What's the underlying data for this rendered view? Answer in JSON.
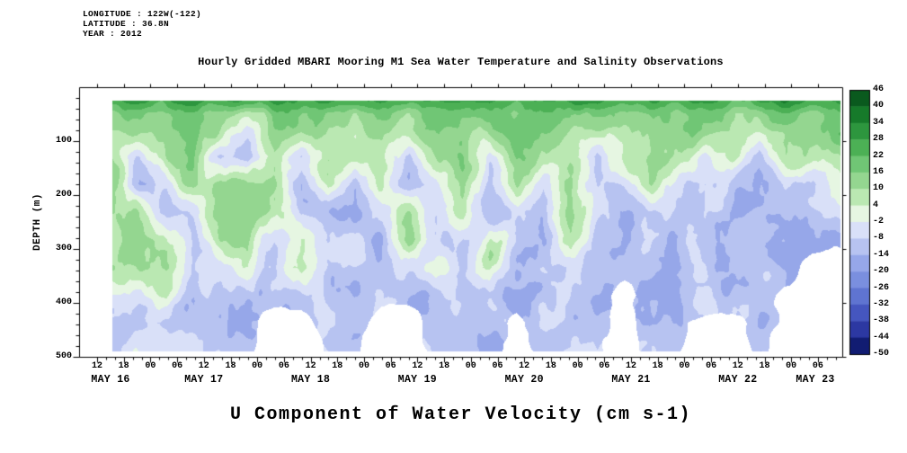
{
  "meta": {
    "longitude": "LONGITUDE : 122W(-122)",
    "latitude": "LATITUDE : 36.8N",
    "year": "YEAR : 2012"
  },
  "chart": {
    "title": "Hourly Gridded MBARI Mooring M1 Sea Water Temperature and Salinity Observations",
    "ylabel": "DEPTH (m)",
    "caption": "U Component of Water Velocity (cm s-1)"
  },
  "chart_data": {
    "type": "heatmap",
    "title": "Hourly Gridded MBARI Mooring M1 Sea Water Temperature and Salinity Observations",
    "ylabel": "DEPTH (m)",
    "units": "cm s-1",
    "y_range_m": [
      0,
      500
    ],
    "y_ticks": [
      "100",
      "200",
      "300",
      "400",
      "500"
    ],
    "x_ticks": [
      "12",
      "18",
      "00",
      "06",
      "12",
      "18",
      "00",
      "06",
      "12",
      "18",
      "00",
      "06",
      "12",
      "18",
      "00",
      "06",
      "12",
      "18",
      "00",
      "06",
      "12",
      "18",
      "00",
      "06",
      "12",
      "18",
      "00",
      "06"
    ],
    "x_day_labels": [
      "MAY 16",
      "MAY 17",
      "MAY 18",
      "MAY 19",
      "MAY 20",
      "MAY 21",
      "MAY 22",
      "MAY 23"
    ],
    "colorbar": {
      "unit": "cm s-1",
      "ticks": [
        46,
        40,
        34,
        28,
        22,
        16,
        10,
        4,
        -2,
        -8,
        -14,
        -20,
        -26,
        -32,
        -38,
        -44,
        -50
      ],
      "colors": [
        "#0a5a1e",
        "#167a2a",
        "#2d963e",
        "#4cb055",
        "#70c675",
        "#94d690",
        "#bae8b2",
        "#e6f6e2",
        "#d9e0f8",
        "#b7c3f1",
        "#96a7e9",
        "#7a8fdf",
        "#5f74d1",
        "#4556bf",
        "#2c38a2",
        "#111c72"
      ]
    },
    "grid": {
      "time_step_hours": 6,
      "depth_step_m": 50,
      "depth_start_m": 25,
      "columns": [
        [
          16,
          12,
          8,
          12,
          14,
          10,
          6,
          -4,
          -8,
          -6
        ],
        [
          18,
          14,
          -6,
          -10,
          8,
          12,
          8,
          -6,
          -10,
          -8
        ],
        [
          20,
          16,
          10,
          -8,
          -12,
          6,
          10,
          4,
          -8,
          -10
        ],
        [
          22,
          18,
          14,
          10,
          -6,
          -10,
          -8,
          -12,
          -10,
          -8
        ],
        [
          16,
          10,
          -8,
          12,
          16,
          10,
          -8,
          -12,
          -10,
          -8
        ],
        [
          18,
          -6,
          -12,
          14,
          18,
          12,
          6,
          -10,
          -14,
          -10
        ],
        [
          20,
          14,
          10,
          16,
          12,
          -8,
          -10,
          -12,
          null,
          null
        ],
        [
          16,
          12,
          -10,
          -14,
          -8,
          6,
          10,
          -8,
          null,
          null
        ],
        [
          22,
          16,
          12,
          8,
          -10,
          -12,
          -8,
          -10,
          -12,
          -10
        ],
        [
          18,
          12,
          8,
          -12,
          -16,
          -10,
          -8,
          -10,
          -12,
          -8
        ],
        [
          20,
          16,
          10,
          6,
          -8,
          -12,
          -10,
          -8,
          null,
          null
        ],
        [
          16,
          10,
          -8,
          -12,
          8,
          12,
          -10,
          -14,
          null,
          null
        ],
        [
          22,
          18,
          12,
          -6,
          -10,
          -8,
          6,
          -10,
          -12,
          -10
        ],
        [
          18,
          14,
          16,
          12,
          8,
          -8,
          -12,
          -10,
          -12,
          -8
        ],
        [
          20,
          12,
          -8,
          -12,
          -10,
          6,
          10,
          -8,
          -10,
          -12
        ],
        [
          16,
          18,
          14,
          10,
          -6,
          -10,
          -12,
          -14,
          null,
          null
        ],
        [
          22,
          16,
          10,
          -8,
          -12,
          -10,
          -8,
          -12,
          -10,
          -8
        ],
        [
          18,
          12,
          8,
          12,
          16,
          10,
          -8,
          -10,
          -12,
          -10
        ],
        [
          20,
          14,
          -10,
          -14,
          -12,
          -8,
          -10,
          -12,
          -10,
          -8
        ],
        [
          16,
          10,
          6,
          -8,
          -12,
          -16,
          -12,
          null,
          null,
          null
        ],
        [
          22,
          18,
          12,
          8,
          -6,
          -10,
          -8,
          -12,
          -10,
          -8
        ],
        [
          18,
          14,
          10,
          -8,
          -12,
          -10,
          -12,
          -14,
          -12,
          -10
        ],
        [
          20,
          16,
          -6,
          -10,
          -8,
          -12,
          -10,
          -8,
          null,
          null
        ],
        [
          16,
          12,
          8,
          -12,
          -16,
          -12,
          -10,
          -12,
          null,
          null
        ],
        [
          18,
          10,
          -8,
          -12,
          -10,
          -8,
          -12,
          -10,
          -12,
          -14
        ],
        [
          22,
          16,
          12,
          -6,
          -10,
          -12,
          -14,
          null,
          null,
          null
        ],
        [
          20,
          14,
          8,
          -10,
          -14,
          -16,
          null,
          null,
          null,
          null
        ],
        [
          24,
          18,
          12,
          6,
          -8,
          -12,
          null,
          null,
          null,
          null
        ]
      ]
    }
  }
}
